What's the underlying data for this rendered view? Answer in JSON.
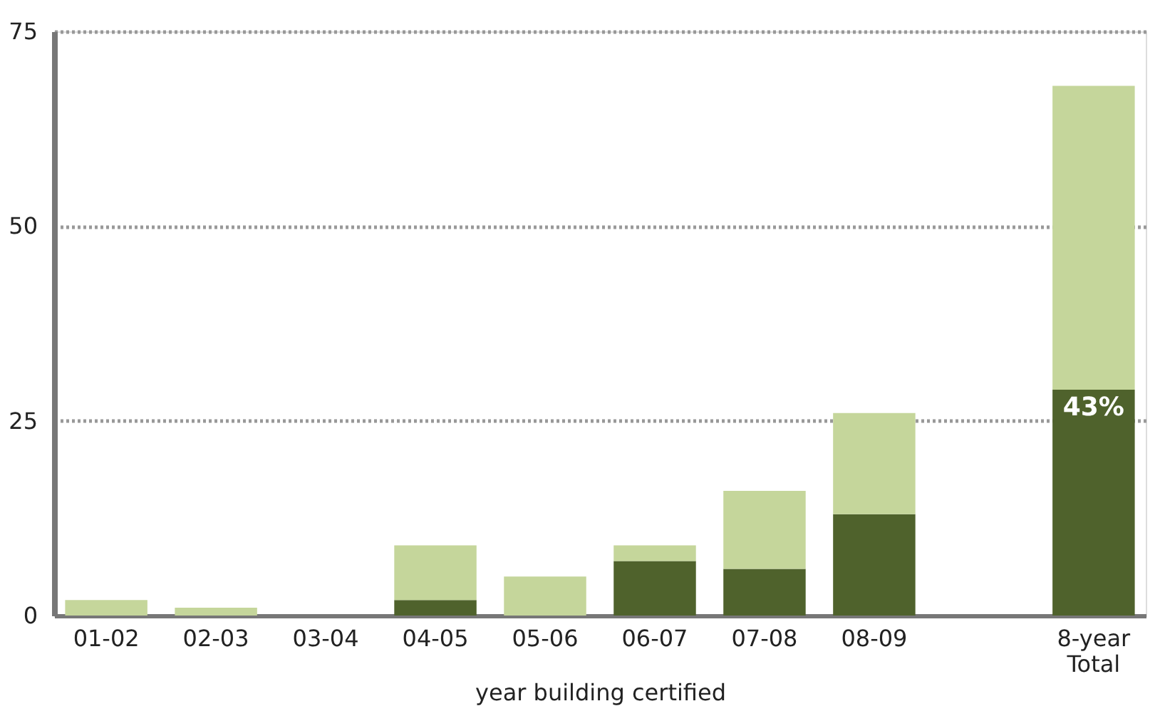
{
  "chart_data": {
    "type": "bar",
    "stacked": true,
    "xlabel": "year building certified",
    "categories": [
      "01-02",
      "02-03",
      "03-04",
      "04-05",
      "05-06",
      "06-07",
      "07-08",
      "08-09",
      null,
      "8-year\nTotal"
    ],
    "series": [
      {
        "color": "#4f622c",
        "values": [
          0,
          0,
          0,
          2,
          0,
          7,
          6,
          13,
          null,
          29
        ]
      },
      {
        "color": "#c5d69b",
        "values": [
          2,
          1,
          0,
          7,
          5,
          2,
          10,
          13,
          null,
          39
        ]
      }
    ],
    "ylim": [
      0,
      75
    ],
    "yticks": [
      0,
      25,
      50,
      75
    ],
    "grid": "y",
    "annotations": [
      {
        "text": "43%",
        "x": "8-year\nTotal",
        "y": 29
      }
    ]
  }
}
